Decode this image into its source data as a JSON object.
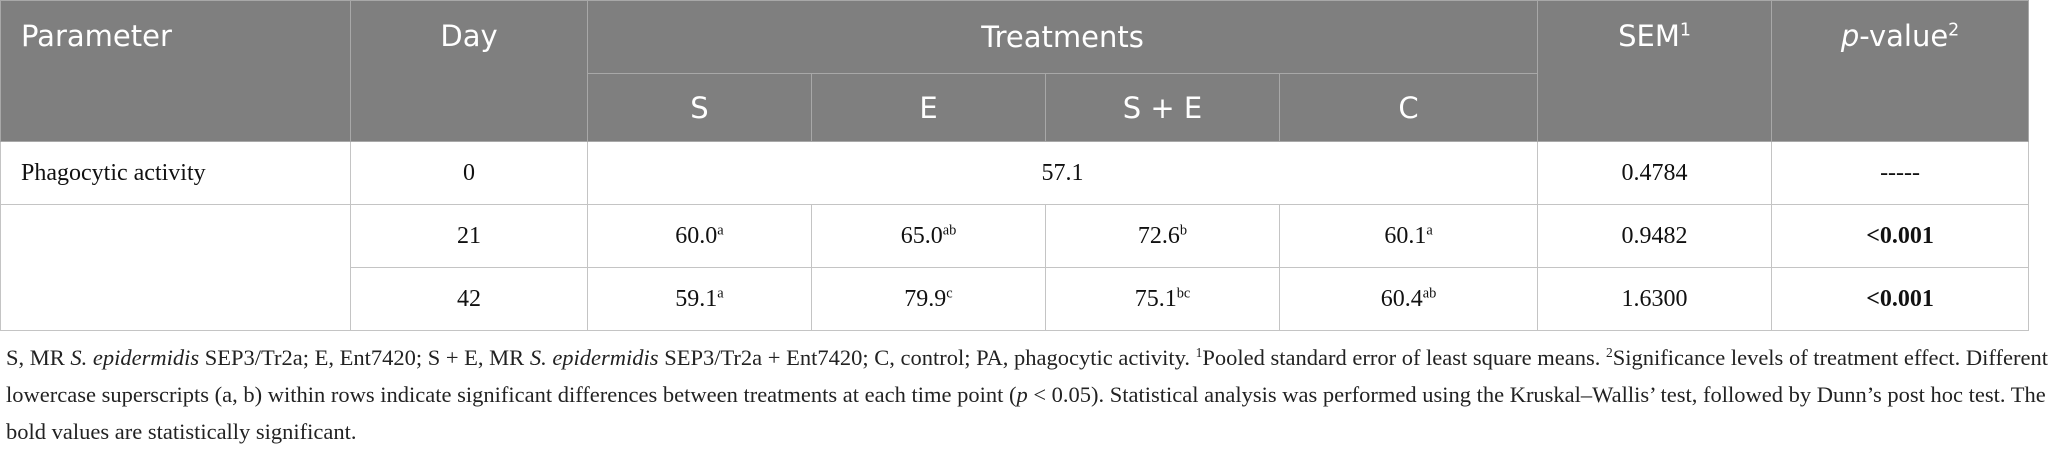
{
  "table": {
    "header": {
      "parameter": "Parameter",
      "day": "Day",
      "treatments": "Treatments",
      "groups": [
        "S",
        "E",
        "S + E",
        "C"
      ],
      "sem": {
        "text": "SEM",
        "sup": "1"
      },
      "p_value": {
        "italic": "p",
        "text": "-value",
        "sup": "2"
      }
    },
    "rows": [
      {
        "parameter": "Phagocytic activity",
        "day": "0",
        "pooled": "57.1",
        "sem": "0.4784",
        "p_value": "-----",
        "p_bold": false
      },
      {
        "day": "21",
        "treatments": [
          {
            "value": "60.0",
            "sup": "a"
          },
          {
            "value": "65.0",
            "sup": "ab"
          },
          {
            "value": "72.6",
            "sup": "b"
          },
          {
            "value": "60.1",
            "sup": "a"
          }
        ],
        "sem": "0.9482",
        "p_value": "<0.001",
        "p_bold": true
      },
      {
        "day": "42",
        "treatments": [
          {
            "value": "59.1",
            "sup": "a"
          },
          {
            "value": "79.9",
            "sup": "c"
          },
          {
            "value": "75.1",
            "sup": "bc"
          },
          {
            "value": "60.4",
            "sup": "ab"
          }
        ],
        "sem": "1.6300",
        "p_value": "<0.001",
        "p_bold": true
      }
    ]
  },
  "footnote": [
    {
      "text": "S, MR ",
      "style": "normal"
    },
    {
      "text": "S. epidermidis",
      "style": "italic"
    },
    {
      "text": " SEP3/Tr2a; E, Ent7420; S + E, MR ",
      "style": "normal"
    },
    {
      "text": "S. epidermidis",
      "style": "italic"
    },
    {
      "text": " SEP3/Tr2a + Ent7420; C, control; PA, phagocytic activity. ",
      "style": "normal"
    },
    {
      "text": "1",
      "style": "sup"
    },
    {
      "text": "Pooled standard error of least square means. ",
      "style": "normal"
    },
    {
      "text": "2",
      "style": "sup"
    },
    {
      "text": "Significance levels of treatment effect. Different lowercase superscripts (a, b) within rows indicate significant differences between treatments at each time point (",
      "style": "normal"
    },
    {
      "text": "p",
      "style": "italic"
    },
    {
      "text": " < 0.05). Statistical analysis was performed using the Kruskal–Wallis’ test, followed by Dunn’s post hoc test. The bold values are statistically significant.",
      "style": "normal"
    }
  ]
}
